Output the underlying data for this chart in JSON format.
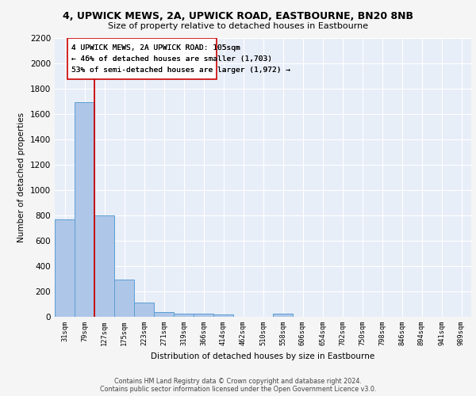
{
  "title1": "4, UPWICK MEWS, 2A, UPWICK ROAD, EASTBOURNE, BN20 8NB",
  "title2": "Size of property relative to detached houses in Eastbourne",
  "xlabel": "Distribution of detached houses by size in Eastbourne",
  "ylabel": "Number of detached properties",
  "categories": [
    "31sqm",
    "79sqm",
    "127sqm",
    "175sqm",
    "223sqm",
    "271sqm",
    "319sqm",
    "366sqm",
    "414sqm",
    "462sqm",
    "510sqm",
    "558sqm",
    "606sqm",
    "654sqm",
    "702sqm",
    "750sqm",
    "798sqm",
    "846sqm",
    "894sqm",
    "941sqm",
    "989sqm"
  ],
  "values": [
    770,
    1690,
    800,
    295,
    110,
    40,
    28,
    22,
    18,
    0,
    0,
    22,
    0,
    0,
    0,
    0,
    0,
    0,
    0,
    0,
    0
  ],
  "bar_color": "#aec6e8",
  "bar_edge_color": "#5a9fd4",
  "vline_x": 1.5,
  "vline_color": "#cc0000",
  "annotation_line1": "4 UPWICK MEWS, 2A UPWICK ROAD: 105sqm",
  "annotation_line2": "← 46% of detached houses are smaller (1,703)",
  "annotation_line3": "53% of semi-detached houses are larger (1,972) →",
  "annotation_box_color": "#ffffff",
  "annotation_box_edge": "#cc0000",
  "ylim": [
    0,
    2200
  ],
  "yticks": [
    0,
    200,
    400,
    600,
    800,
    1000,
    1200,
    1400,
    1600,
    1800,
    2000,
    2200
  ],
  "background_color": "#e8eef8",
  "grid_color": "#ffffff",
  "fig_bg": "#f5f5f5",
  "footer": "Contains HM Land Registry data © Crown copyright and database right 2024.\nContains public sector information licensed under the Open Government Licence v3.0."
}
